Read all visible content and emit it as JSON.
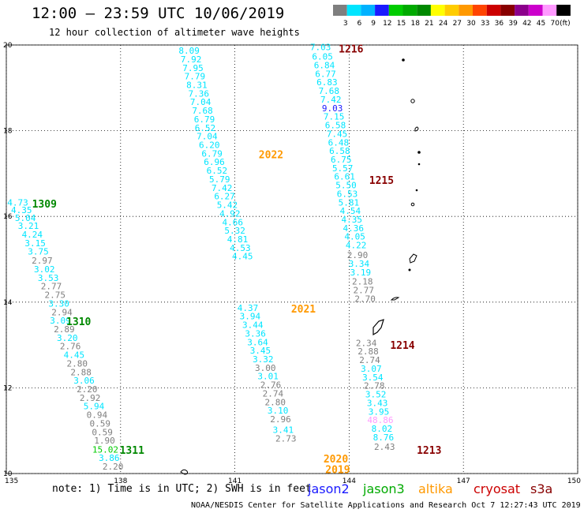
{
  "header": {
    "title": "12:00 — 23:59 UTC 10/06/2019",
    "subtitle": "12 hour collection of altimeter wave heights"
  },
  "colorbar": {
    "unit": "(ft)",
    "bins": [
      {
        "label": "3",
        "color": "#7f7f7f"
      },
      {
        "label": "6",
        "color": "#00e5ff"
      },
      {
        "label": "9",
        "color": "#00b2ff"
      },
      {
        "label": "12",
        "color": "#1a1aff"
      },
      {
        "label": "15",
        "color": "#00cc00"
      },
      {
        "label": "18",
        "color": "#00aa00"
      },
      {
        "label": "21",
        "color": "#008800"
      },
      {
        "label": "24",
        "color": "#ffff00"
      },
      {
        "label": "27",
        "color": "#ffcc00"
      },
      {
        "label": "30",
        "color": "#ff9900"
      },
      {
        "label": "33",
        "color": "#ff4400"
      },
      {
        "label": "36",
        "color": "#cc0000"
      },
      {
        "label": "39",
        "color": "#880000"
      },
      {
        "label": "42",
        "color": "#8b008b"
      },
      {
        "label": "45",
        "color": "#cc00cc"
      },
      {
        "label": "70",
        "color": "#ff99ff"
      },
      {
        "label": "",
        "color": "#000000"
      }
    ]
  },
  "axes": {
    "lon_ticks": [
      "135",
      "138",
      "141",
      "144",
      "147",
      "150"
    ],
    "lat_ticks": [
      "20",
      "18",
      "16",
      "14",
      "12",
      "10"
    ]
  },
  "footer": {
    "note": "note: 1) Time is in UTC; 2) SWH is in feet",
    "credit": "NOAA/NESDIS Center for Satellite Applications and Research   Oct  7 12:27:43 UTC 2019",
    "satellites": [
      {
        "name": "jason2",
        "color": "#1a1aff"
      },
      {
        "name": "jason3",
        "color": "#00aa00"
      },
      {
        "name": "altika",
        "color": "#ff9900"
      },
      {
        "name": "cryosat",
        "color": "#cc0000"
      },
      {
        "name": "s3a",
        "color": "#880000"
      }
    ]
  },
  "tracks": [
    {
      "label": "1309",
      "label_color": "#008800",
      "label_lat": 16.3,
      "label_lon": 136.0,
      "points": [
        {
          "lat": 16.33,
          "lon": 135.3,
          "v": "4.73",
          "c": "#00e5ff"
        },
        {
          "lat": 16.15,
          "lon": 135.4,
          "v": "4.35",
          "c": "#00e5ff"
        },
        {
          "lat": 15.97,
          "lon": 135.5,
          "v": "5.04",
          "c": "#00e5ff"
        },
        {
          "lat": 15.78,
          "lon": 135.58,
          "v": "3.21",
          "c": "#00e5ff"
        },
        {
          "lat": 15.58,
          "lon": 135.68,
          "v": "4.24",
          "c": "#00e5ff"
        },
        {
          "lat": 15.38,
          "lon": 135.76,
          "v": "3.15",
          "c": "#00e5ff"
        },
        {
          "lat": 15.18,
          "lon": 135.84,
          "v": "3.75",
          "c": "#00e5ff"
        },
        {
          "lat": 14.97,
          "lon": 135.94,
          "v": "2.97",
          "c": "#7f7f7f"
        },
        {
          "lat": 14.77,
          "lon": 136.0,
          "v": "3.02",
          "c": "#00e5ff"
        },
        {
          "lat": 14.57,
          "lon": 136.1,
          "v": "3.53",
          "c": "#00e5ff"
        },
        {
          "lat": 14.37,
          "lon": 136.18,
          "v": "2.77",
          "c": "#7f7f7f"
        },
        {
          "lat": 14.17,
          "lon": 136.28,
          "v": "2.75",
          "c": "#7f7f7f"
        },
        {
          "lat": 13.97,
          "lon": 136.38,
          "v": "3.30",
          "c": "#00e5ff"
        },
        {
          "lat": 13.77,
          "lon": 136.46,
          "v": "2.94",
          "c": "#7f7f7f"
        }
      ]
    },
    {
      "label": "1310",
      "label_color": "#008800",
      "label_lat": 13.55,
      "label_lon": 136.9,
      "points": [
        {
          "lat": 13.57,
          "lon": 136.42,
          "v": "3.09",
          "c": "#00e5ff"
        },
        {
          "lat": 13.37,
          "lon": 136.52,
          "v": "2.89",
          "c": "#7f7f7f"
        },
        {
          "lat": 13.17,
          "lon": 136.6,
          "v": "3.20",
          "c": "#00e5ff"
        },
        {
          "lat": 12.97,
          "lon": 136.68,
          "v": "2.76",
          "c": "#7f7f7f"
        },
        {
          "lat": 12.77,
          "lon": 136.78,
          "v": "4.45",
          "c": "#00e5ff"
        },
        {
          "lat": 12.57,
          "lon": 136.86,
          "v": "2.80",
          "c": "#7f7f7f"
        },
        {
          "lat": 12.37,
          "lon": 136.96,
          "v": "2.88",
          "c": "#7f7f7f"
        },
        {
          "lat": 12.17,
          "lon": 137.04,
          "v": "3.06",
          "c": "#00e5ff"
        },
        {
          "lat": 11.97,
          "lon": 137.12,
          "v": "2.20",
          "c": "#7f7f7f"
        },
        {
          "lat": 11.77,
          "lon": 137.2,
          "v": "2.92",
          "c": "#7f7f7f"
        },
        {
          "lat": 11.57,
          "lon": 137.3,
          "v": "5.94",
          "c": "#00e5ff"
        },
        {
          "lat": 11.37,
          "lon": 137.38,
          "v": "0.94",
          "c": "#7f7f7f"
        },
        {
          "lat": 11.17,
          "lon": 137.46,
          "v": "0.59",
          "c": "#7f7f7f"
        },
        {
          "lat": 10.97,
          "lon": 137.52,
          "v": "0.59",
          "c": "#7f7f7f"
        },
        {
          "lat": 10.77,
          "lon": 137.58,
          "v": "1.90",
          "c": "#7f7f7f"
        }
      ]
    },
    {
      "label": "1311",
      "label_color": "#008800",
      "label_lat": 10.55,
      "label_lon": 138.3,
      "points": [
        {
          "lat": 10.56,
          "lon": 137.6,
          "v": "15.02",
          "c": "#00cc00"
        },
        {
          "lat": 10.37,
          "lon": 137.7,
          "v": "3.86",
          "c": "#00e5ff"
        },
        {
          "lat": 10.17,
          "lon": 137.8,
          "v": "2.20",
          "c": "#7f7f7f"
        }
      ]
    },
    {
      "label": "2022",
      "label_color": "#ff9900",
      "label_lat": 17.45,
      "label_lon": 141.95,
      "points": [
        {
          "lat": 19.87,
          "lon": 139.8,
          "v": "8.09",
          "c": "#00e5ff"
        },
        {
          "lat": 19.67,
          "lon": 139.85,
          "v": "7.92",
          "c": "#00e5ff"
        },
        {
          "lat": 19.47,
          "lon": 139.9,
          "v": "7.95",
          "c": "#00e5ff"
        },
        {
          "lat": 19.27,
          "lon": 139.95,
          "v": "7.79",
          "c": "#00e5ff"
        },
        {
          "lat": 19.07,
          "lon": 140.0,
          "v": "8.31",
          "c": "#00e5ff"
        },
        {
          "lat": 18.87,
          "lon": 140.05,
          "v": "7.36",
          "c": "#00e5ff"
        },
        {
          "lat": 18.67,
          "lon": 140.1,
          "v": "7.04",
          "c": "#00e5ff"
        },
        {
          "lat": 18.47,
          "lon": 140.15,
          "v": "7.68",
          "c": "#00e5ff"
        },
        {
          "lat": 18.27,
          "lon": 140.2,
          "v": "6.79",
          "c": "#00e5ff"
        },
        {
          "lat": 18.07,
          "lon": 140.22,
          "v": "6.52",
          "c": "#00e5ff"
        },
        {
          "lat": 17.87,
          "lon": 140.27,
          "v": "7.04",
          "c": "#00e5ff"
        },
        {
          "lat": 17.67,
          "lon": 140.33,
          "v": "6.20",
          "c": "#00e5ff"
        },
        {
          "lat": 17.47,
          "lon": 140.4,
          "v": "6.79",
          "c": "#00e5ff"
        },
        {
          "lat": 17.27,
          "lon": 140.46,
          "v": "6.96",
          "c": "#00e5ff"
        },
        {
          "lat": 17.07,
          "lon": 140.53,
          "v": "6.52",
          "c": "#00e5ff"
        },
        {
          "lat": 16.87,
          "lon": 140.6,
          "v": "5.79",
          "c": "#00e5ff"
        },
        {
          "lat": 16.67,
          "lon": 140.66,
          "v": "7.42",
          "c": "#00e5ff"
        },
        {
          "lat": 16.47,
          "lon": 140.73,
          "v": "6.27",
          "c": "#00e5ff"
        },
        {
          "lat": 16.27,
          "lon": 140.8,
          "v": "5.42",
          "c": "#00e5ff"
        },
        {
          "lat": 16.07,
          "lon": 140.87,
          "v": "4.92",
          "c": "#00e5ff"
        },
        {
          "lat": 15.87,
          "lon": 140.94,
          "v": "4.66",
          "c": "#00e5ff"
        },
        {
          "lat": 15.67,
          "lon": 141.0,
          "v": "5.32",
          "c": "#00e5ff"
        },
        {
          "lat": 15.47,
          "lon": 141.07,
          "v": "4.81",
          "c": "#00e5ff"
        },
        {
          "lat": 15.27,
          "lon": 141.14,
          "v": "4.53",
          "c": "#00e5ff"
        },
        {
          "lat": 15.07,
          "lon": 141.2,
          "v": "4.45",
          "c": "#00e5ff"
        }
      ]
    },
    {
      "label": "2021",
      "label_color": "#ff9900",
      "label_lat": 13.85,
      "label_lon": 142.8,
      "points": [
        {
          "lat": 13.87,
          "lon": 141.34,
          "v": "4.37",
          "c": "#00e5ff"
        },
        {
          "lat": 13.67,
          "lon": 141.4,
          "v": "3.94",
          "c": "#00e5ff"
        },
        {
          "lat": 13.47,
          "lon": 141.47,
          "v": "3.44",
          "c": "#00e5ff"
        },
        {
          "lat": 13.27,
          "lon": 141.54,
          "v": "3.36",
          "c": "#00e5ff"
        },
        {
          "lat": 13.07,
          "lon": 141.6,
          "v": "3.64",
          "c": "#00e5ff"
        },
        {
          "lat": 12.87,
          "lon": 141.67,
          "v": "3.45",
          "c": "#00e5ff"
        },
        {
          "lat": 12.67,
          "lon": 141.74,
          "v": "3.32",
          "c": "#00e5ff"
        },
        {
          "lat": 12.47,
          "lon": 141.8,
          "v": "3.00",
          "c": "#7f7f7f"
        },
        {
          "lat": 12.27,
          "lon": 141.87,
          "v": "3.01",
          "c": "#00e5ff"
        },
        {
          "lat": 12.07,
          "lon": 141.94,
          "v": "2.76",
          "c": "#7f7f7f"
        },
        {
          "lat": 11.87,
          "lon": 142.0,
          "v": "2.74",
          "c": "#7f7f7f"
        },
        {
          "lat": 11.67,
          "lon": 142.06,
          "v": "2.80",
          "c": "#7f7f7f"
        },
        {
          "lat": 11.47,
          "lon": 142.13,
          "v": "3.10",
          "c": "#00e5ff"
        },
        {
          "lat": 11.27,
          "lon": 142.2,
          "v": "2.96",
          "c": "#7f7f7f"
        }
      ]
    },
    {
      "label": "2020",
      "label_color": "#ff9900",
      "label_lat": 10.35,
      "label_lon": 143.65,
      "points": [
        {
          "lat": 11.02,
          "lon": 142.27,
          "v": "3.41",
          "c": "#00e5ff"
        },
        {
          "lat": 10.82,
          "lon": 142.34,
          "v": "2.73",
          "c": "#7f7f7f"
        }
      ]
    },
    {
      "label": "2019",
      "label_color": "#ff9900",
      "label_lat": 10.1,
      "label_lon": 143.7,
      "points": []
    },
    {
      "label": "1216",
      "label_color": "#880000",
      "label_lat": 19.92,
      "label_lon": 144.05,
      "points": [
        {
          "lat": 19.95,
          "lon": 143.25,
          "v": "7.03",
          "c": "#00e5ff"
        },
        {
          "lat": 19.73,
          "lon": 143.3,
          "v": "6.05",
          "c": "#00e5ff"
        },
        {
          "lat": 19.53,
          "lon": 143.35,
          "v": "6.84",
          "c": "#00e5ff"
        },
        {
          "lat": 19.33,
          "lon": 143.38,
          "v": "6.77",
          "c": "#00e5ff"
        },
        {
          "lat": 19.13,
          "lon": 143.42,
          "v": "6.83",
          "c": "#00e5ff"
        },
        {
          "lat": 18.93,
          "lon": 143.47,
          "v": "7.68",
          "c": "#00e5ff"
        },
        {
          "lat": 18.73,
          "lon": 143.52,
          "v": "7.42",
          "c": "#00e5ff"
        },
        {
          "lat": 18.53,
          "lon": 143.56,
          "v": "9.03",
          "c": "#1a1aff"
        },
        {
          "lat": 18.33,
          "lon": 143.6,
          "v": "7.15",
          "c": "#00e5ff"
        },
        {
          "lat": 18.13,
          "lon": 143.64,
          "v": "6.58",
          "c": "#00e5ff"
        },
        {
          "lat": 17.93,
          "lon": 143.68,
          "v": "7.45",
          "c": "#00e5ff"
        },
        {
          "lat": 17.73,
          "lon": 143.72,
          "v": "6.48",
          "c": "#00e5ff"
        },
        {
          "lat": 17.53,
          "lon": 143.75,
          "v": "6.58",
          "c": "#00e5ff"
        },
        {
          "lat": 17.33,
          "lon": 143.79,
          "v": "6.75",
          "c": "#00e5ff"
        },
        {
          "lat": 17.13,
          "lon": 143.83,
          "v": "5.57",
          "c": "#00e5ff"
        }
      ]
    },
    {
      "label": "1215",
      "label_color": "#880000",
      "label_lat": 16.85,
      "label_lon": 144.85,
      "points": [
        {
          "lat": 16.93,
          "lon": 143.88,
          "v": "6.61",
          "c": "#00e5ff"
        },
        {
          "lat": 16.73,
          "lon": 143.92,
          "v": "5.50",
          "c": "#00e5ff"
        },
        {
          "lat": 16.53,
          "lon": 143.95,
          "v": "6.53",
          "c": "#00e5ff"
        },
        {
          "lat": 16.33,
          "lon": 143.99,
          "v": "5.81",
          "c": "#00e5ff"
        },
        {
          "lat": 16.13,
          "lon": 144.03,
          "v": "4.54",
          "c": "#00e5ff"
        },
        {
          "lat": 15.93,
          "lon": 144.07,
          "v": "4.35",
          "c": "#00e5ff"
        },
        {
          "lat": 15.73,
          "lon": 144.11,
          "v": "4.36",
          "c": "#00e5ff"
        },
        {
          "lat": 15.53,
          "lon": 144.15,
          "v": "4.05",
          "c": "#00e5ff"
        },
        {
          "lat": 15.33,
          "lon": 144.18,
          "v": "4.22",
          "c": "#00e5ff"
        },
        {
          "lat": 15.1,
          "lon": 144.22,
          "v": "2.90",
          "c": "#7f7f7f"
        },
        {
          "lat": 14.9,
          "lon": 144.26,
          "v": "3.34",
          "c": "#00e5ff"
        },
        {
          "lat": 14.7,
          "lon": 144.3,
          "v": "3.19",
          "c": "#00e5ff"
        },
        {
          "lat": 14.48,
          "lon": 144.35,
          "v": "2.18",
          "c": "#7f7f7f"
        },
        {
          "lat": 14.28,
          "lon": 144.38,
          "v": "2.77",
          "c": "#7f7f7f"
        },
        {
          "lat": 14.08,
          "lon": 144.42,
          "v": "2.70",
          "c": "#7f7f7f"
        }
      ]
    },
    {
      "label": "1214",
      "label_color": "#880000",
      "label_lat": 13.0,
      "label_lon": 145.4,
      "points": [
        {
          "lat": 13.05,
          "lon": 144.45,
          "v": "2.34",
          "c": "#7f7f7f"
        },
        {
          "lat": 12.85,
          "lon": 144.5,
          "v": "2.88",
          "c": "#7f7f7f"
        },
        {
          "lat": 12.65,
          "lon": 144.54,
          "v": "2.74",
          "c": "#7f7f7f"
        },
        {
          "lat": 12.45,
          "lon": 144.58,
          "v": "3.07",
          "c": "#00e5ff"
        },
        {
          "lat": 12.25,
          "lon": 144.62,
          "v": "3.54",
          "c": "#00e5ff"
        },
        {
          "lat": 12.05,
          "lon": 144.66,
          "v": "2.78",
          "c": "#7f7f7f"
        },
        {
          "lat": 11.85,
          "lon": 144.7,
          "v": "3.52",
          "c": "#00e5ff"
        },
        {
          "lat": 11.65,
          "lon": 144.74,
          "v": "3.43",
          "c": "#00e5ff"
        },
        {
          "lat": 11.45,
          "lon": 144.78,
          "v": "3.95",
          "c": "#00e5ff"
        },
        {
          "lat": 11.25,
          "lon": 144.82,
          "v": "48.86",
          "c": "#ff99ff"
        },
        {
          "lat": 11.05,
          "lon": 144.86,
          "v": "8.02",
          "c": "#00e5ff"
        },
        {
          "lat": 10.85,
          "lon": 144.9,
          "v": "8.76",
          "c": "#00e5ff"
        },
        {
          "lat": 10.63,
          "lon": 144.93,
          "v": "2.43",
          "c": "#7f7f7f"
        }
      ]
    },
    {
      "label": "1213",
      "label_color": "#880000",
      "label_lat": 10.55,
      "label_lon": 146.1,
      "points": []
    }
  ]
}
